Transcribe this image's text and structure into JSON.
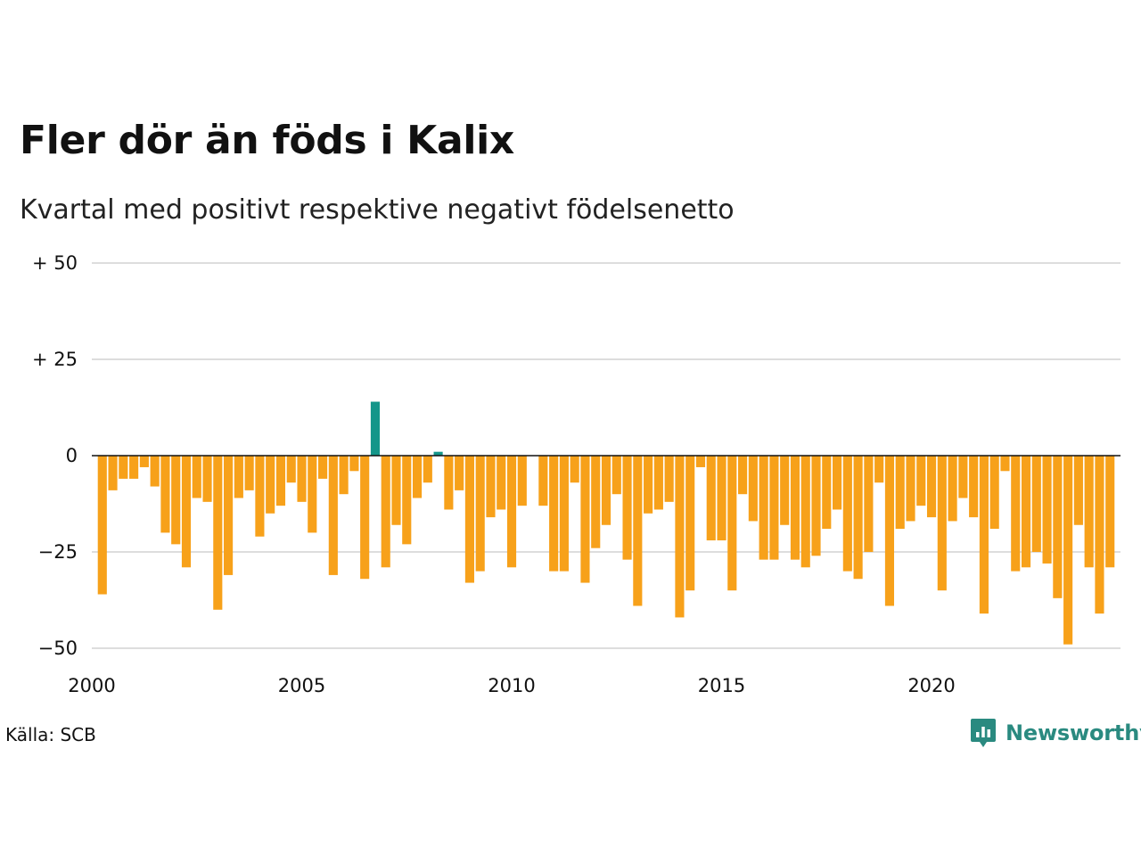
{
  "title": "Fler dör än föds i Kalix",
  "subtitle": "Kvartal med positivt respektive negativt födelsenetto",
  "source": "Källa: SCB",
  "brand": "Newsworthy",
  "brand_icon": "bar-chart-speech-bubble-icon",
  "colors": {
    "positive": "#14968a",
    "negative": "#f7a11a",
    "brand": "#2a8a80",
    "grid": "#dddddd",
    "zero_line": "#111111"
  },
  "chart_data": {
    "type": "bar",
    "title": "Fler dör än föds i Kalix",
    "subtitle": "Kvartal med positivt respektive negativt födelsenetto",
    "xlabel": "",
    "ylabel": "",
    "ylim": [
      -50,
      50
    ],
    "xlim": [
      2000,
      2024.5
    ],
    "y_ticks": [
      {
        "value": 50,
        "label": "+ 50"
      },
      {
        "value": 25,
        "label": "+ 25"
      },
      {
        "value": 0,
        "label": "0"
      },
      {
        "value": -25,
        "label": "−25"
      },
      {
        "value": -50,
        "label": "−50"
      }
    ],
    "x_ticks": [
      {
        "value": 2000,
        "label": "2000"
      },
      {
        "value": 2005,
        "label": "2005"
      },
      {
        "value": 2010,
        "label": "2010"
      },
      {
        "value": 2015,
        "label": "2015"
      },
      {
        "value": 2020,
        "label": "2020"
      }
    ],
    "grid": true,
    "legend": "none",
    "start_year": 2000,
    "periods_per_year": 4,
    "values": [
      -36,
      -9,
      -6,
      -6,
      -3,
      -8,
      -20,
      -23,
      -29,
      -11,
      -12,
      -40,
      -31,
      -11,
      -9,
      -21,
      -15,
      -13,
      -7,
      -12,
      -20,
      -6,
      -31,
      -10,
      -4,
      -32,
      14,
      -29,
      -18,
      -23,
      -11,
      -7,
      1,
      -14,
      -9,
      -33,
      -30,
      -16,
      -14,
      -29,
      -13,
      0,
      -13,
      -30,
      -30,
      -7,
      -33,
      -24,
      -18,
      -10,
      -27,
      -39,
      -15,
      -14,
      -12,
      -42,
      -35,
      -3,
      -22,
      -22,
      -35,
      -10,
      -17,
      -27,
      -27,
      -18,
      -27,
      -29,
      -26,
      -19,
      -14,
      -30,
      -32,
      -25,
      -7,
      -39,
      -19,
      -17,
      -13,
      -16,
      -35,
      -17,
      -11,
      -16,
      -41,
      -19,
      -4,
      -30,
      -29,
      -25,
      -28,
      -37,
      -49,
      -18,
      -29,
      -41,
      -29
    ]
  }
}
